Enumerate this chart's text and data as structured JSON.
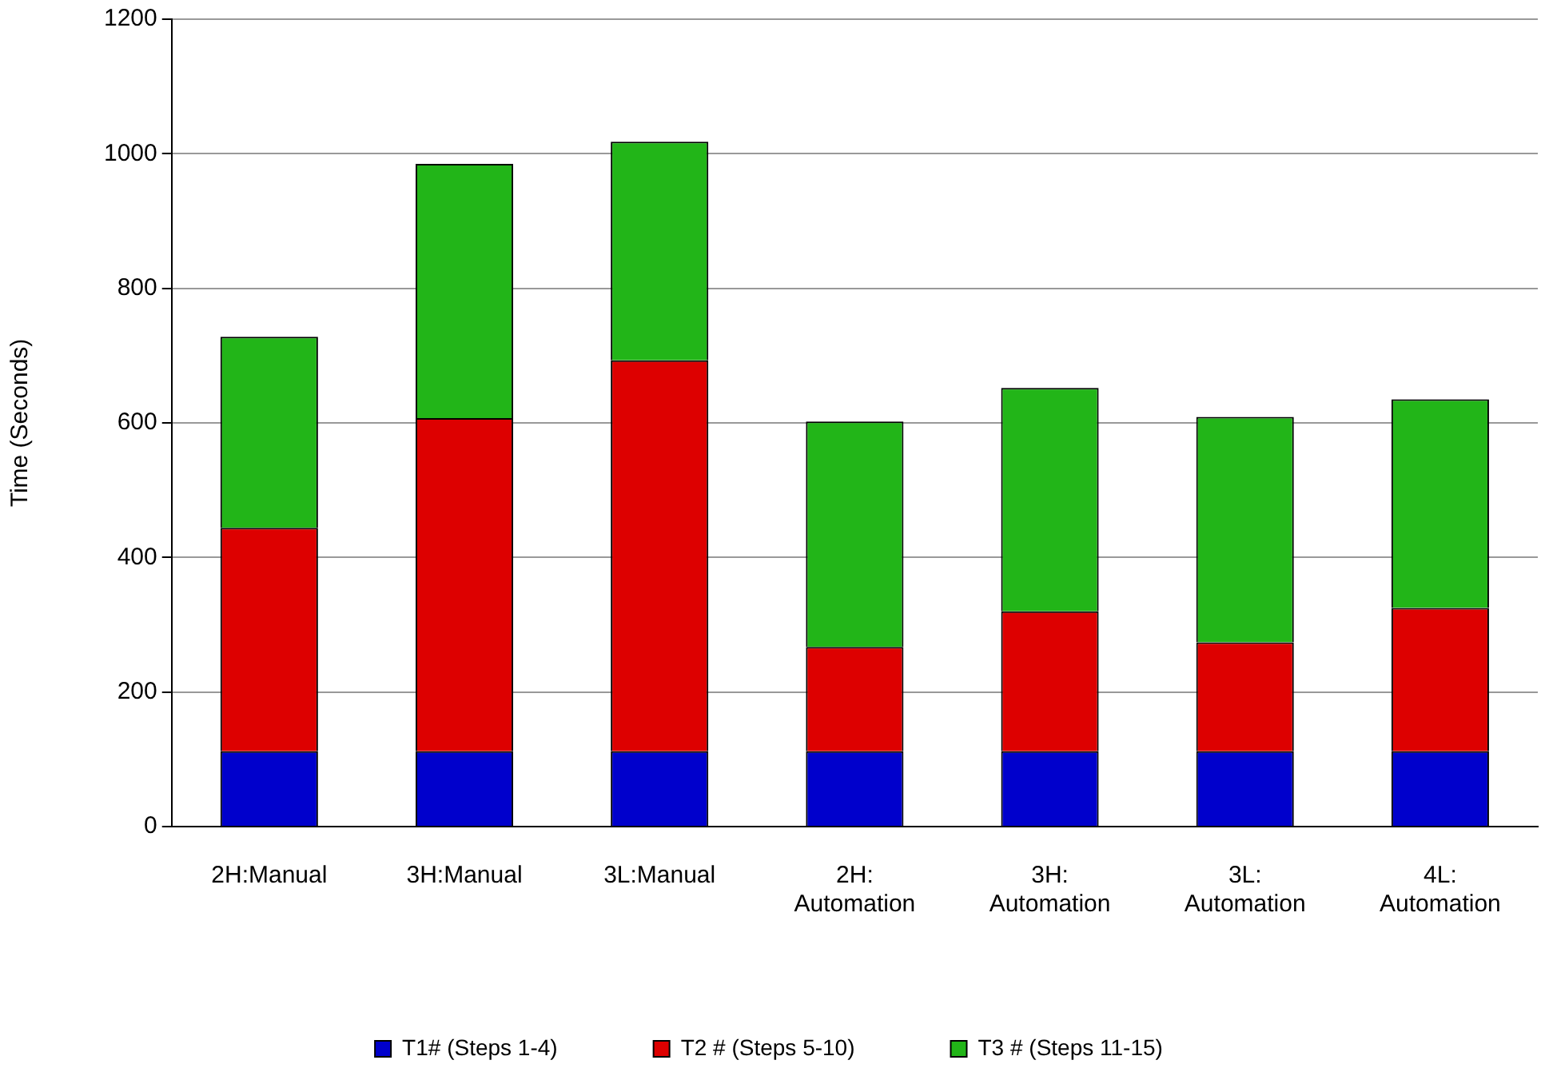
{
  "chart_data": {
    "type": "bar",
    "stacked": true,
    "ylabel": "Time (Seconds)",
    "categories": [
      "2H:Manual",
      "3H:Manual",
      "3L:Manual",
      "2H: Automation",
      "3H: Automation",
      "3L: Automation",
      "4L: Automation"
    ],
    "series": [
      {
        "name": "T1# (Steps 1-4)",
        "color": "#0000cc",
        "values": [
          112,
          112,
          112,
          112,
          112,
          112,
          112
        ]
      },
      {
        "name": "T2 # (Steps 5-10)",
        "color": "#dd0000",
        "values": [
          332,
          495,
          581,
          155,
          208,
          162,
          213
        ]
      },
      {
        "name": "T3 # (Steps 11-15)",
        "color": "#22b518",
        "values": [
          284,
          378,
          325,
          335,
          332,
          335,
          310
        ]
      }
    ],
    "ylim": [
      0,
      1200
    ],
    "yticks": [
      0,
      200,
      400,
      600,
      800,
      1000,
      1200
    ],
    "grid": "y",
    "legend": "bottom"
  }
}
